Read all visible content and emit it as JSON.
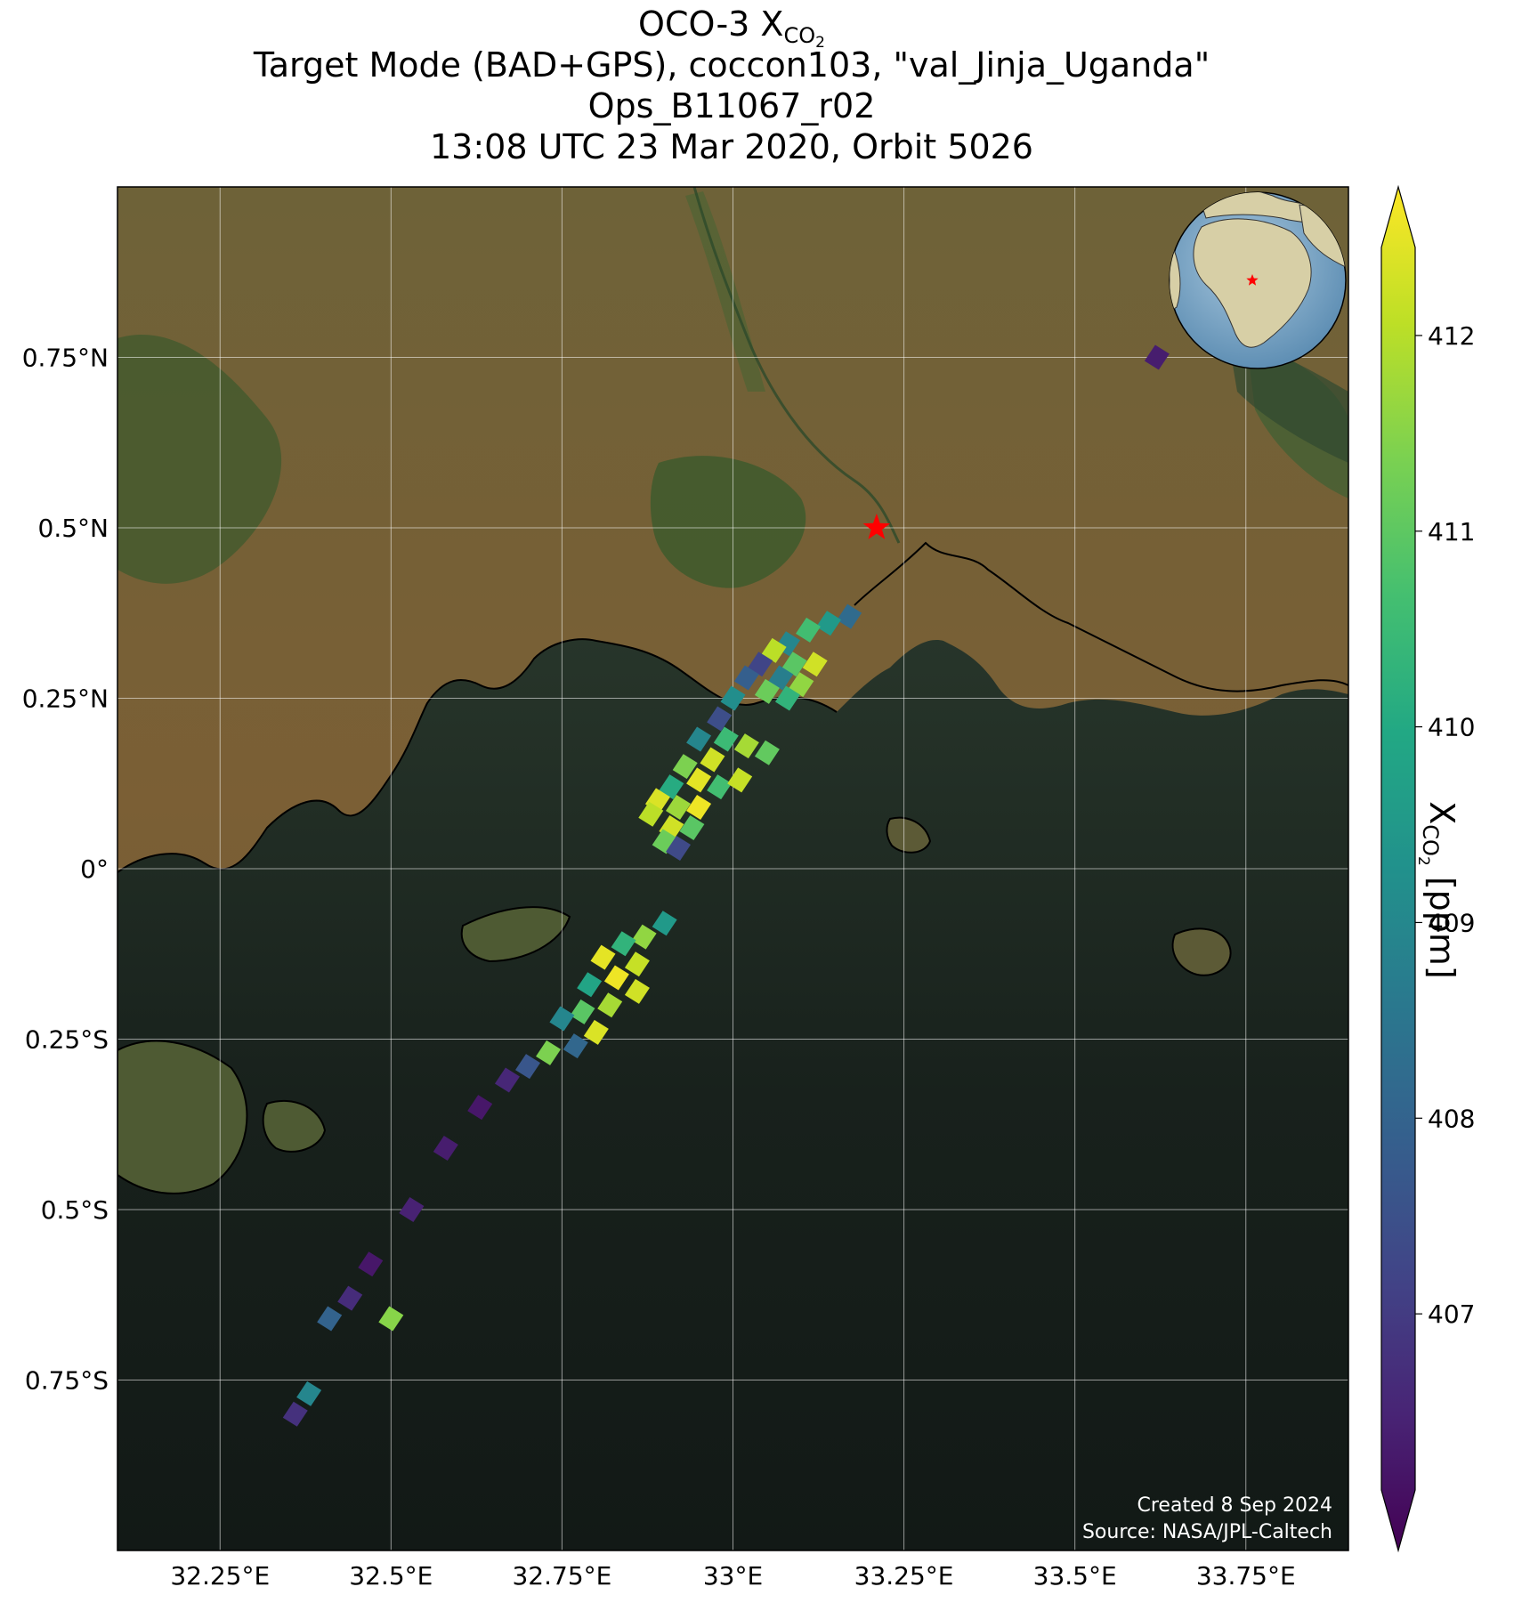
{
  "title": {
    "line1_prefix": "OCO-3 X",
    "line1_sub": "CO",
    "line1_subsub": "2",
    "line2": "Target Mode (BAD+GPS), coccon103, \"val_Jinja_Uganda\"",
    "line3": "Ops_B11067_r02",
    "line4": "13:08 UTC 23 Mar 2020, Orbit 5026"
  },
  "colorbar": {
    "label_prefix": "X",
    "label_sub": "CO",
    "label_subsub": "2",
    "label_suffix": " [ppm]",
    "colormap": "viridis",
    "min": 406.1,
    "max": 412.45,
    "ticks": [
      "407",
      "408",
      "409",
      "410",
      "411",
      "412"
    ],
    "extend": "both"
  },
  "map": {
    "lon_range": [
      32.1,
      33.9
    ],
    "lat_range": [
      -1.0,
      1.0
    ],
    "lon_ticks": [
      "32.25°E",
      "32.5°E",
      "32.75°E",
      "33°E",
      "33.25°E",
      "33.5°E",
      "33.75°E"
    ],
    "lat_ticks": [
      "0.75°N",
      "0.5°N",
      "0.25°N",
      "0°",
      "0.25°S",
      "0.5°S",
      "0.75°S"
    ],
    "gridlines": true,
    "background": "satellite imagery",
    "target_marker": {
      "lon": 33.21,
      "lat": 0.5,
      "color": "#ff0000",
      "symbol": "star-icon"
    },
    "inset_globe": {
      "position": "top-right",
      "marker_color": "#ff0000"
    },
    "land_color": "#7a6a3c",
    "lake_color": "#1b2520"
  },
  "credits": {
    "created": "Created 8 Sep 2024",
    "source": "Source: NASA/JPL-Caltech"
  },
  "chart_data": {
    "type": "heatmap",
    "title": "OCO-3 XCO2 Target Mode (BAD+GPS), coccon103, \"val_Jinja_Uganda\" Ops_B11067_r02 13:08 UTC 23 Mar 2020, Orbit 5026",
    "xlabel": "",
    "ylabel": "",
    "value_label": "XCO2 [ppm]",
    "soundings": [
      {
        "lon": 33.62,
        "lat": 0.75,
        "xco2": 406.6
      },
      {
        "lon": 33.17,
        "lat": 0.37,
        "xco2": 408.3
      },
      {
        "lon": 33.14,
        "lat": 0.36,
        "xco2": 409.5
      },
      {
        "lon": 33.11,
        "lat": 0.35,
        "xco2": 410.5
      },
      {
        "lon": 33.08,
        "lat": 0.33,
        "xco2": 409.0
      },
      {
        "lon": 33.06,
        "lat": 0.32,
        "xco2": 411.8
      },
      {
        "lon": 33.09,
        "lat": 0.3,
        "xco2": 410.8
      },
      {
        "lon": 33.12,
        "lat": 0.3,
        "xco2": 412.0
      },
      {
        "lon": 33.07,
        "lat": 0.28,
        "xco2": 408.8
      },
      {
        "lon": 33.04,
        "lat": 0.3,
        "xco2": 407.4
      },
      {
        "lon": 33.1,
        "lat": 0.27,
        "xco2": 411.4
      },
      {
        "lon": 33.08,
        "lat": 0.25,
        "xco2": 410.2
      },
      {
        "lon": 33.05,
        "lat": 0.26,
        "xco2": 411.0
      },
      {
        "lon": 33.02,
        "lat": 0.28,
        "xco2": 408.0
      },
      {
        "lon": 33.0,
        "lat": 0.25,
        "xco2": 409.2
      },
      {
        "lon": 32.98,
        "lat": 0.22,
        "xco2": 407.6
      },
      {
        "lon": 32.99,
        "lat": 0.19,
        "xco2": 410.4
      },
      {
        "lon": 33.02,
        "lat": 0.18,
        "xco2": 411.6
      },
      {
        "lon": 33.05,
        "lat": 0.17,
        "xco2": 410.9
      },
      {
        "lon": 32.97,
        "lat": 0.16,
        "xco2": 412.0
      },
      {
        "lon": 32.95,
        "lat": 0.19,
        "xco2": 409.0
      },
      {
        "lon": 32.93,
        "lat": 0.15,
        "xco2": 411.2
      },
      {
        "lon": 32.95,
        "lat": 0.13,
        "xco2": 412.2
      },
      {
        "lon": 32.98,
        "lat": 0.12,
        "xco2": 410.5
      },
      {
        "lon": 33.01,
        "lat": 0.13,
        "xco2": 411.9
      },
      {
        "lon": 32.91,
        "lat": 0.12,
        "xco2": 410.0
      },
      {
        "lon": 32.89,
        "lat": 0.1,
        "xco2": 412.1
      },
      {
        "lon": 32.92,
        "lat": 0.09,
        "xco2": 411.5
      },
      {
        "lon": 32.95,
        "lat": 0.09,
        "xco2": 412.3
      },
      {
        "lon": 32.88,
        "lat": 0.08,
        "xco2": 411.8
      },
      {
        "lon": 32.91,
        "lat": 0.06,
        "xco2": 412.0
      },
      {
        "lon": 32.94,
        "lat": 0.06,
        "xco2": 410.8
      },
      {
        "lon": 32.9,
        "lat": 0.04,
        "xco2": 411.0
      },
      {
        "lon": 32.92,
        "lat": 0.03,
        "xco2": 407.5
      },
      {
        "lon": 32.9,
        "lat": -0.08,
        "xco2": 409.5
      },
      {
        "lon": 32.87,
        "lat": -0.1,
        "xco2": 411.4
      },
      {
        "lon": 32.84,
        "lat": -0.11,
        "xco2": 410.2
      },
      {
        "lon": 32.81,
        "lat": -0.13,
        "xco2": 412.2
      },
      {
        "lon": 32.86,
        "lat": -0.14,
        "xco2": 411.9
      },
      {
        "lon": 32.83,
        "lat": -0.16,
        "xco2": 412.3
      },
      {
        "lon": 32.79,
        "lat": -0.17,
        "xco2": 409.8
      },
      {
        "lon": 32.86,
        "lat": -0.18,
        "xco2": 412.0
      },
      {
        "lon": 32.82,
        "lat": -0.2,
        "xco2": 411.6
      },
      {
        "lon": 32.78,
        "lat": -0.21,
        "xco2": 410.8
      },
      {
        "lon": 32.75,
        "lat": -0.22,
        "xco2": 409.0
      },
      {
        "lon": 32.8,
        "lat": -0.24,
        "xco2": 412.1
      },
      {
        "lon": 32.77,
        "lat": -0.26,
        "xco2": 408.2
      },
      {
        "lon": 32.73,
        "lat": -0.27,
        "xco2": 411.2
      },
      {
        "lon": 32.7,
        "lat": -0.29,
        "xco2": 407.8
      },
      {
        "lon": 32.67,
        "lat": -0.31,
        "xco2": 406.8
      },
      {
        "lon": 32.63,
        "lat": -0.35,
        "xco2": 406.5
      },
      {
        "lon": 32.58,
        "lat": -0.41,
        "xco2": 406.6
      },
      {
        "lon": 32.53,
        "lat": -0.5,
        "xco2": 406.7
      },
      {
        "lon": 32.47,
        "lat": -0.58,
        "xco2": 406.5
      },
      {
        "lon": 32.44,
        "lat": -0.63,
        "xco2": 406.9
      },
      {
        "lon": 32.41,
        "lat": -0.66,
        "xco2": 408.1
      },
      {
        "lon": 32.5,
        "lat": -0.66,
        "xco2": 411.3
      },
      {
        "lon": 32.38,
        "lat": -0.77,
        "xco2": 409.0
      },
      {
        "lon": 32.36,
        "lat": -0.8,
        "xco2": 407.0
      }
    ]
  }
}
